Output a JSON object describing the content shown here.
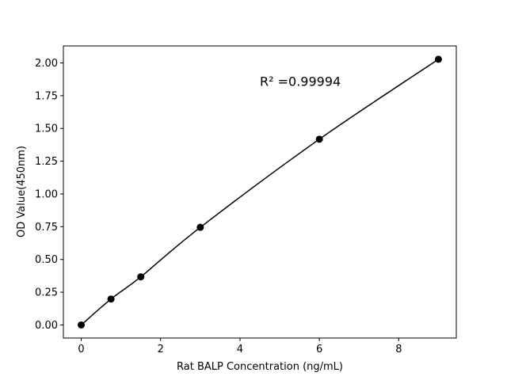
{
  "chart_data": {
    "type": "line",
    "title": "",
    "xlabel": "Rat BALP Concentration (ng/mL)",
    "ylabel": "OD Value(450nm)",
    "xlim": [
      -0.45,
      9.45
    ],
    "ylim": [
      -0.1,
      2.13
    ],
    "xticks": [
      0,
      2,
      4,
      6,
      8
    ],
    "xtick_labels": [
      "0",
      "2",
      "4",
      "6",
      "8"
    ],
    "yticks": [
      0,
      0.25,
      0.5,
      0.75,
      1.0,
      1.25,
      1.5,
      1.75,
      2.0
    ],
    "ytick_labels": [
      "0.00",
      "0.25",
      "0.50",
      "0.75",
      "1.00",
      "1.25",
      "1.50",
      "1.75",
      "2.00"
    ],
    "grid": false,
    "series": [
      {
        "x": [
          0,
          0.75,
          1.5,
          3,
          6,
          9
        ],
        "y": [
          0.0,
          0.198,
          0.367,
          0.745,
          1.418,
          2.028
        ],
        "color": "#000000",
        "marker": "circle"
      }
    ],
    "annotations": [
      {
        "text": "R² =0.99994",
        "x": 4.5,
        "y": 1.86
      }
    ]
  }
}
